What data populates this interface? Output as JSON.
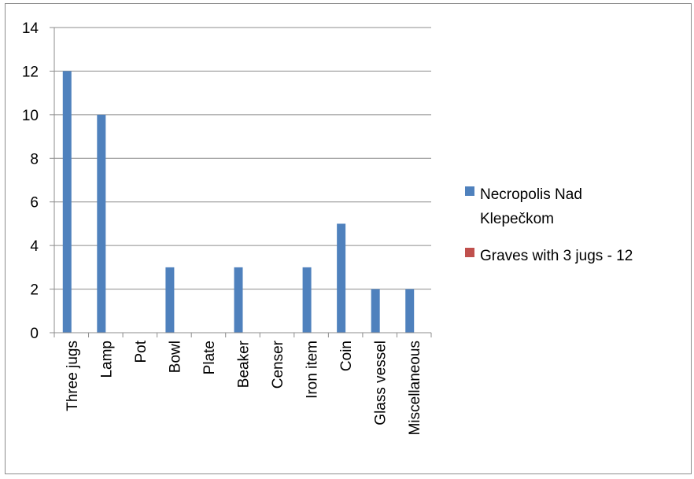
{
  "chart_data": {
    "type": "bar",
    "categories": [
      "Three jugs",
      "Lamp",
      "Pot",
      "Bowl",
      "Plate",
      "Beaker",
      "Censer",
      "Iron item",
      "Coin",
      "Glass vessel",
      "Miscellaneous"
    ],
    "series": [
      {
        "name": "Necropolis Nad Klepečkom",
        "color": "#4f81bd",
        "values": [
          12,
          10,
          0,
          3,
          0,
          3,
          0,
          3,
          5,
          2,
          2
        ]
      },
      {
        "name": "Graves with 3 jugs - 12",
        "color": "#c0504d",
        "values": [
          0,
          0,
          0,
          0,
          0,
          0,
          0,
          0,
          0,
          0,
          0
        ]
      }
    ],
    "yticks": [
      0,
      2,
      4,
      6,
      8,
      10,
      12,
      14
    ],
    "ylim": [
      0,
      14
    ],
    "grid": true,
    "legend": "right",
    "legend_lines": [
      [
        "Necropolis Nad",
        "Klepečkom"
      ],
      [
        "Graves with 3 jugs - 12"
      ]
    ],
    "title": "",
    "xlabel": "",
    "ylabel": ""
  }
}
